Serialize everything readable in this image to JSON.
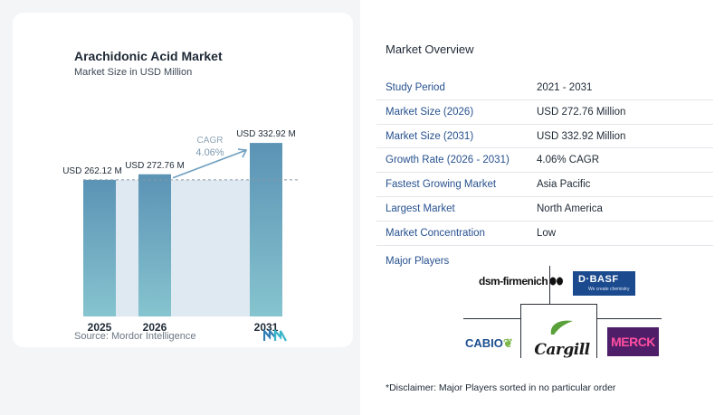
{
  "chart_data": {
    "type": "bar",
    "title": "Arachidonic Acid Market",
    "subtitle": "Market Size in USD Million",
    "categories": [
      "2025",
      "2026",
      "2031"
    ],
    "values": [
      262.12,
      272.76,
      332.92
    ],
    "data_labels": [
      "USD 262.12 M",
      "USD 272.76 M",
      "USD 332.92 M"
    ],
    "ylim": [
      0,
      340
    ],
    "cagr_label": "CAGR",
    "cagr_value": "4.06%",
    "bar_color": "#5b93b5",
    "bar_color_bottom": "#86c4cf",
    "band_color": "#dfe9f1",
    "arrow_color": "#6f9fbf"
  },
  "source": "Source:  Mordor Intelligence",
  "overview": {
    "title": "Market Overview",
    "rows": [
      {
        "label": "Study Period",
        "value": "2021 - 2031"
      },
      {
        "label": "Market Size (2026)",
        "value": "USD 272.76 Million"
      },
      {
        "label": "Market Size (2031)",
        "value": "USD 332.92 Million"
      },
      {
        "label": "Growth Rate (2026 - 2031)",
        "value": "4.06% CAGR"
      },
      {
        "label": "Fastest Growing Market",
        "value": "Asia Pacific"
      },
      {
        "label": "Largest Market",
        "value": "North America"
      },
      {
        "label": "Market Concentration",
        "value": "Low"
      }
    ],
    "players_title": "Major Players",
    "players": {
      "dsm": "dsm-firmenich",
      "basf": "D·BASF",
      "basf_tag": "We create chemistry",
      "cabio": "CABIO",
      "cargill": "Cargill",
      "merck": "MERCK"
    },
    "disclaimer": "*Disclaimer: Major Players sorted in no particular order"
  }
}
